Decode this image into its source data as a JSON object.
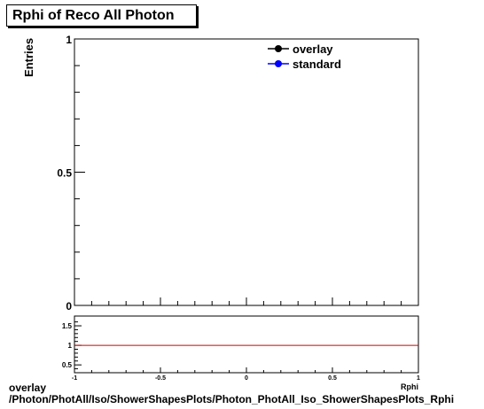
{
  "title": "Rphi of Reco All Photon",
  "chart_data": [
    {
      "type": "line",
      "ylabel": "Entries",
      "xlim": [
        -1,
        1
      ],
      "ylim": [
        0,
        1
      ],
      "yticks": [
        "0",
        "0.5",
        "1"
      ],
      "legend": {
        "placement": "top-right",
        "entries": [
          {
            "name": "overlay",
            "color": "#000000"
          },
          {
            "name": "standard",
            "color": "#0000ff"
          }
        ]
      },
      "series": [
        {
          "name": "overlay",
          "values": []
        },
        {
          "name": "standard",
          "values": []
        }
      ]
    },
    {
      "type": "line",
      "xlabel": "Rphi",
      "xlim": [
        -1,
        1
      ],
      "xticks": [
        "-1",
        "-0.5",
        "0",
        "0.5",
        "1"
      ],
      "ylim": [
        0.3,
        1.75
      ],
      "yticks": [
        "0.5",
        "1",
        "1.5"
      ],
      "reference_line": {
        "y": 1,
        "color": "#cc0000"
      }
    }
  ],
  "footer": {
    "line1": "overlay",
    "line2": "/Photon/PhotAll/Iso/ShowerShapesPlots/Photon_PhotAll_Iso_ShowerShapesPlots_Rphi"
  }
}
